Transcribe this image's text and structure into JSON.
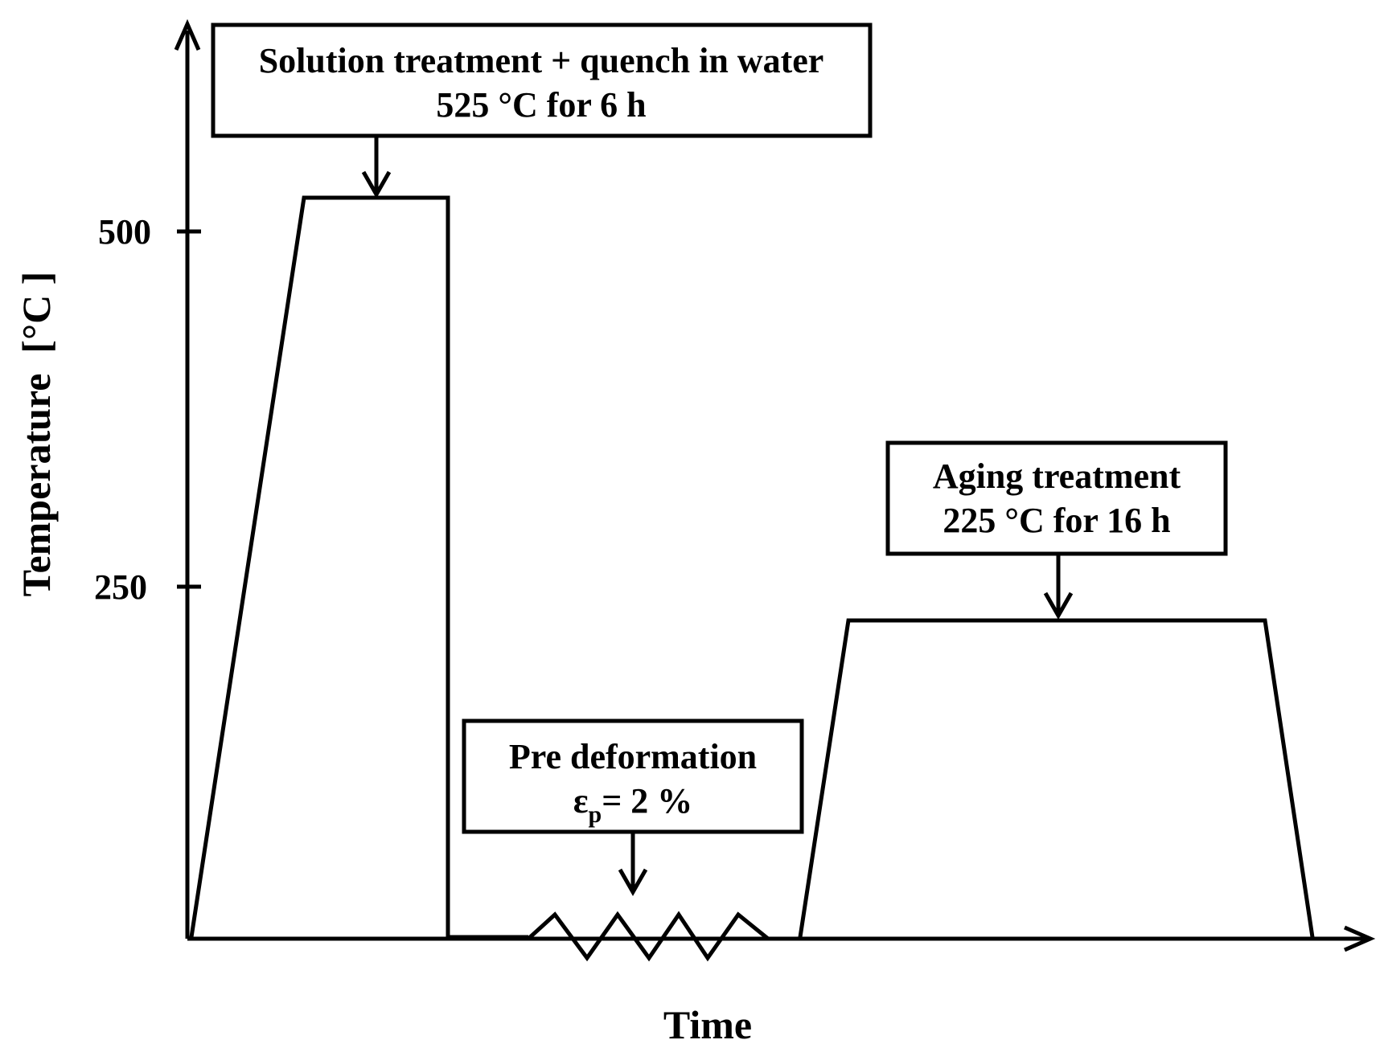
{
  "axes": {
    "y_title": "Temperature  [°C ]",
    "x_title": "Time",
    "y_ticks": [
      "500",
      "250"
    ]
  },
  "boxes": {
    "solution": {
      "line1": "Solution treatment + quench in water",
      "line2": "525 °C for 6 h"
    },
    "predeformation": {
      "line1": "Pre deformation",
      "line2_symbol": "ε",
      "line2_sub": "p",
      "line2_rest": "= 2 %"
    },
    "aging": {
      "line1": "Aging treatment",
      "line2": "225 °C for 16 h"
    }
  },
  "colors": {
    "stroke": "#000000",
    "background": "#ffffff"
  }
}
